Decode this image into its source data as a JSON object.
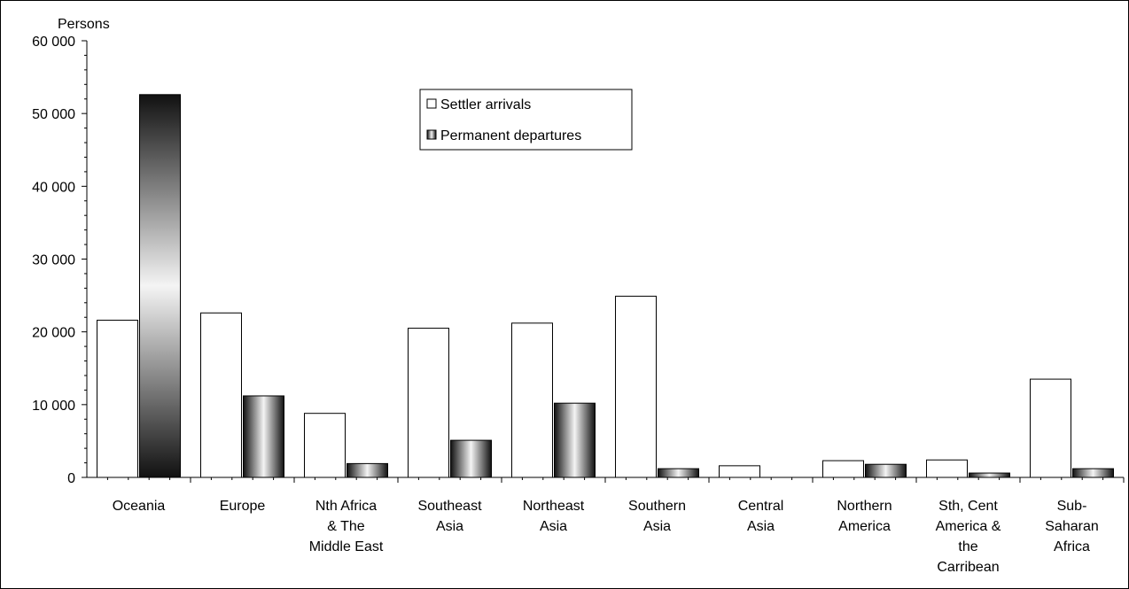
{
  "chart_data": {
    "type": "bar",
    "ylabel": "Persons",
    "ylim": [
      0,
      60000
    ],
    "yticks": [
      "0",
      "10 000",
      "20 000",
      "30 000",
      "40 000",
      "50 000",
      "60 000"
    ],
    "ytick_values": [
      0,
      10000,
      20000,
      30000,
      40000,
      50000,
      60000
    ],
    "categories": [
      [
        "Oceania"
      ],
      [
        "Europe"
      ],
      [
        "Nth Africa",
        "& The",
        "Middle East"
      ],
      [
        "Southeast",
        "Asia"
      ],
      [
        "Northeast",
        "Asia"
      ],
      [
        "Southern",
        "Asia"
      ],
      [
        "Central",
        "Asia"
      ],
      [
        "Northern",
        "America"
      ],
      [
        "Sth, Cent",
        "America &",
        "the",
        "Carribean"
      ],
      [
        "Sub-",
        "Saharan",
        "Africa"
      ]
    ],
    "series": [
      {
        "name": "Settler arrivals",
        "color": "#ffffff",
        "values": [
          21600,
          22600,
          8800,
          20500,
          21200,
          24900,
          1600,
          2300,
          2400,
          13500
        ]
      },
      {
        "name": "Permanent departures",
        "color": "#333333",
        "values": [
          52600,
          11200,
          1900,
          5100,
          10200,
          1200,
          0,
          1800,
          600,
          1200
        ]
      }
    ],
    "legend_position": "top-center",
    "grid": false
  }
}
